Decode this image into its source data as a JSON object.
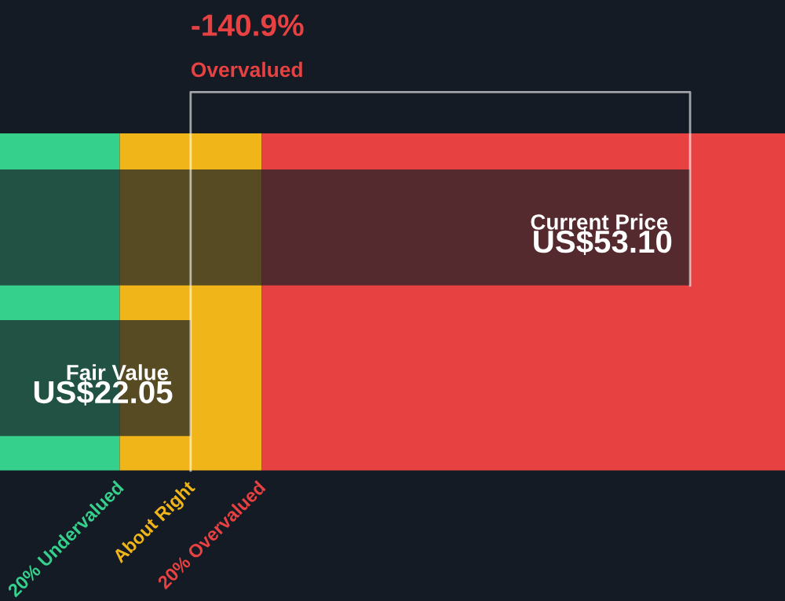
{
  "chart_data": {
    "type": "bar",
    "orientation": "horizontal",
    "title": "-140.9%",
    "subtitle": "Overvalued",
    "categories": [
      "Current Price",
      "Fair Value"
    ],
    "values": [
      53.1,
      22.05
    ],
    "value_labels": [
      "US$53.10",
      "US$22.05"
    ],
    "color": "#1c2128",
    "xlim": [
      10.2,
      59.0
    ],
    "bands": [
      {
        "axis": "x",
        "from": 10.2,
        "to": 17.64,
        "label": "20% Undervalued",
        "color": "#34d08c"
      },
      {
        "axis": "x",
        "from": 17.64,
        "to": 26.46,
        "label": "About Right",
        "color": "#f0b619"
      },
      {
        "axis": "x",
        "from": 26.46,
        "to": 59.0,
        "label": "20% Overvalued",
        "color": "#e84142"
      }
    ]
  }
}
